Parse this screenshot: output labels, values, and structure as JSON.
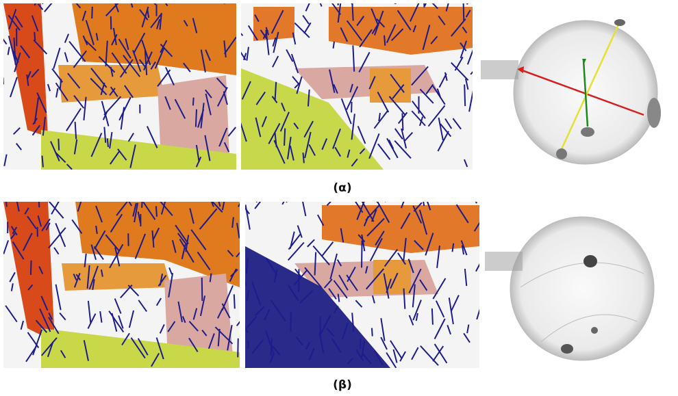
{
  "figure": {
    "captions": [
      "(α)",
      "(β)"
    ]
  }
}
